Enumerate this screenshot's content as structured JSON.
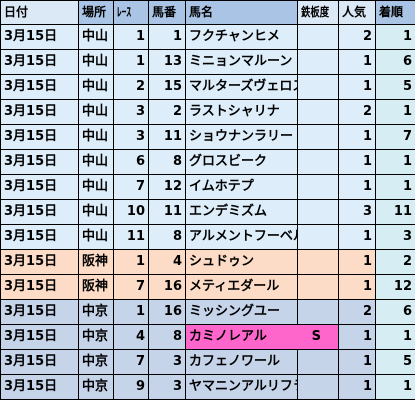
{
  "headers": {
    "date": "日付",
    "venue": "場所",
    "race": "ﾚｰｽ",
    "number": "馬番",
    "horse": "馬名",
    "iron": "鉄板度",
    "pop": "人気",
    "finish": "着順"
  },
  "colors": {
    "header_light": "#dbe8f6",
    "header_dark": "#a9c4e4",
    "nakayama_row": "#ddeefa",
    "hanshin_row": "#fcdcc6",
    "chukyo_row": "#c6d4ea",
    "finish_column": "#d6eef3",
    "highlight_pink": "#ff66cc"
  },
  "rows": [
    {
      "date": "3月15日",
      "venue": "中山",
      "race": "1",
      "number": "1",
      "horse": "フクチャンヒメ",
      "iron": "",
      "pop": "2",
      "finish": "1",
      "group": "nakayama"
    },
    {
      "date": "3月15日",
      "venue": "中山",
      "race": "1",
      "number": "13",
      "horse": "ミニョンマルーン",
      "iron": "",
      "pop": "1",
      "finish": "6",
      "group": "nakayama"
    },
    {
      "date": "3月15日",
      "venue": "中山",
      "race": "2",
      "number": "15",
      "horse": "マルターズヴェロス",
      "iron": "",
      "pop": "1",
      "finish": "5",
      "group": "nakayama"
    },
    {
      "date": "3月15日",
      "venue": "中山",
      "race": "3",
      "number": "2",
      "horse": "ラストシャリナ",
      "iron": "",
      "pop": "2",
      "finish": "1",
      "group": "nakayama"
    },
    {
      "date": "3月15日",
      "venue": "中山",
      "race": "3",
      "number": "11",
      "horse": "ショウナンラリー",
      "iron": "",
      "pop": "1",
      "finish": "7",
      "group": "nakayama"
    },
    {
      "date": "3月15日",
      "venue": "中山",
      "race": "6",
      "number": "8",
      "horse": "グロスビーク",
      "iron": "",
      "pop": "1",
      "finish": "1",
      "group": "nakayama"
    },
    {
      "date": "3月15日",
      "venue": "中山",
      "race": "7",
      "number": "12",
      "horse": "イムホテプ",
      "iron": "",
      "pop": "1",
      "finish": "1",
      "group": "nakayama"
    },
    {
      "date": "3月15日",
      "venue": "中山",
      "race": "10",
      "number": "11",
      "horse": "エンデミズム",
      "iron": "",
      "pop": "3",
      "finish": "11",
      "group": "nakayama"
    },
    {
      "date": "3月15日",
      "venue": "中山",
      "race": "11",
      "number": "8",
      "horse": "アルメントフーベル",
      "iron": "",
      "pop": "1",
      "finish": "3",
      "group": "nakayama"
    },
    {
      "date": "3月15日",
      "venue": "阪神",
      "race": "1",
      "number": "4",
      "horse": "シュドゥン",
      "iron": "",
      "pop": "1",
      "finish": "2",
      "group": "hanshin"
    },
    {
      "date": "3月15日",
      "venue": "阪神",
      "race": "7",
      "number": "16",
      "horse": "メティエダール",
      "iron": "",
      "pop": "1",
      "finish": "12",
      "group": "hanshin"
    },
    {
      "date": "3月15日",
      "venue": "中京",
      "race": "1",
      "number": "16",
      "horse": "ミッシングユー",
      "iron": "",
      "pop": "2",
      "finish": "6",
      "group": "chukyo"
    },
    {
      "date": "3月15日",
      "venue": "中京",
      "race": "4",
      "number": "8",
      "horse": "カミノレアル",
      "iron": "S",
      "pop": "1",
      "finish": "1",
      "group": "chukyo",
      "highlight": true
    },
    {
      "date": "3月15日",
      "venue": "中京",
      "race": "7",
      "number": "3",
      "horse": "カフェノワール",
      "iron": "",
      "pop": "1",
      "finish": "5",
      "group": "chukyo"
    },
    {
      "date": "3月15日",
      "venue": "中京",
      "race": "9",
      "number": "3",
      "horse": "ヤマニンアルリフラ",
      "iron": "",
      "pop": "1",
      "finish": "1",
      "group": "chukyo"
    }
  ]
}
